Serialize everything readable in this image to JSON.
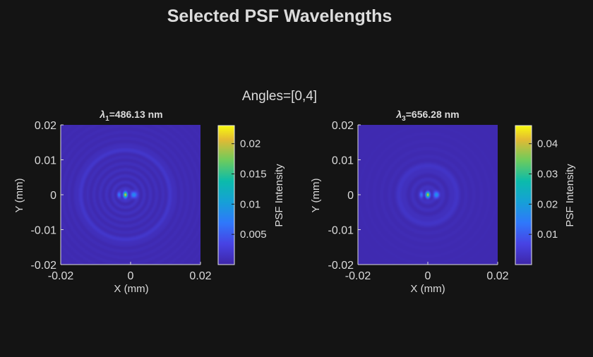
{
  "figure": {
    "title": "Selected PSF Wavelengths",
    "subtitle": "Angles=[0,4]",
    "background": "#141414",
    "text_color": "#dcdcdc"
  },
  "chart_data": [
    {
      "type": "heatmap",
      "title_symbol": "λ",
      "title_subscript": "1",
      "title_rest": "=486.13 nm",
      "xlabel": "X (mm)",
      "ylabel": "Y (mm)",
      "xlim": [
        -0.02,
        0.02
      ],
      "ylim": [
        -0.02,
        0.02
      ],
      "xticks": [
        -0.02,
        0,
        0.02
      ],
      "xtick_labels": [
        "-0.02",
        "0",
        "0.02"
      ],
      "yticks": [
        0.02,
        0.01,
        0,
        -0.01,
        -0.02
      ],
      "ytick_labels": [
        "0.02",
        "0.01",
        "0",
        "-0.01",
        "-0.02"
      ],
      "colorbar": {
        "label": "PSF Intensity",
        "range": [
          0,
          0.023
        ],
        "ticks": [
          0.02,
          0.015,
          0.01,
          0.005
        ],
        "tick_labels": [
          "0.02",
          "0.015",
          "0.01",
          "0.005"
        ]
      },
      "colormap": "parula",
      "psf": {
        "peak_center_mm": [
          -0.0015,
          0.0
        ],
        "peak_intensity": 0.023,
        "ring_spacing_mm": 0.0018,
        "halo_radius_mm": 0.013
      }
    },
    {
      "type": "heatmap",
      "title_symbol": "λ",
      "title_subscript": "3",
      "title_rest": "=656.28 nm",
      "xlabel": "X (mm)",
      "ylabel": "Y (mm)",
      "xlim": [
        -0.02,
        0.02
      ],
      "ylim": [
        -0.02,
        0.02
      ],
      "xticks": [
        -0.02,
        0,
        0.02
      ],
      "xtick_labels": [
        "-0.02",
        "0",
        "0.02"
      ],
      "yticks": [
        0.02,
        0.01,
        0,
        -0.01,
        -0.02
      ],
      "ytick_labels": [
        "0.02",
        "0.01",
        "0",
        "-0.01",
        "-0.02"
      ],
      "colorbar": {
        "label": "PSF Intensity",
        "range": [
          0,
          0.046
        ],
        "ticks": [
          0.04,
          0.03,
          0.02,
          0.01
        ],
        "tick_labels": [
          "0.04",
          "0.03",
          "0.02",
          "0.01"
        ]
      },
      "colormap": "parula",
      "psf": {
        "peak_center_mm": [
          0.0,
          0.0
        ],
        "peak_intensity": 0.046,
        "ring_spacing_mm": 0.0022,
        "halo_radius_mm": 0.008
      }
    }
  ]
}
